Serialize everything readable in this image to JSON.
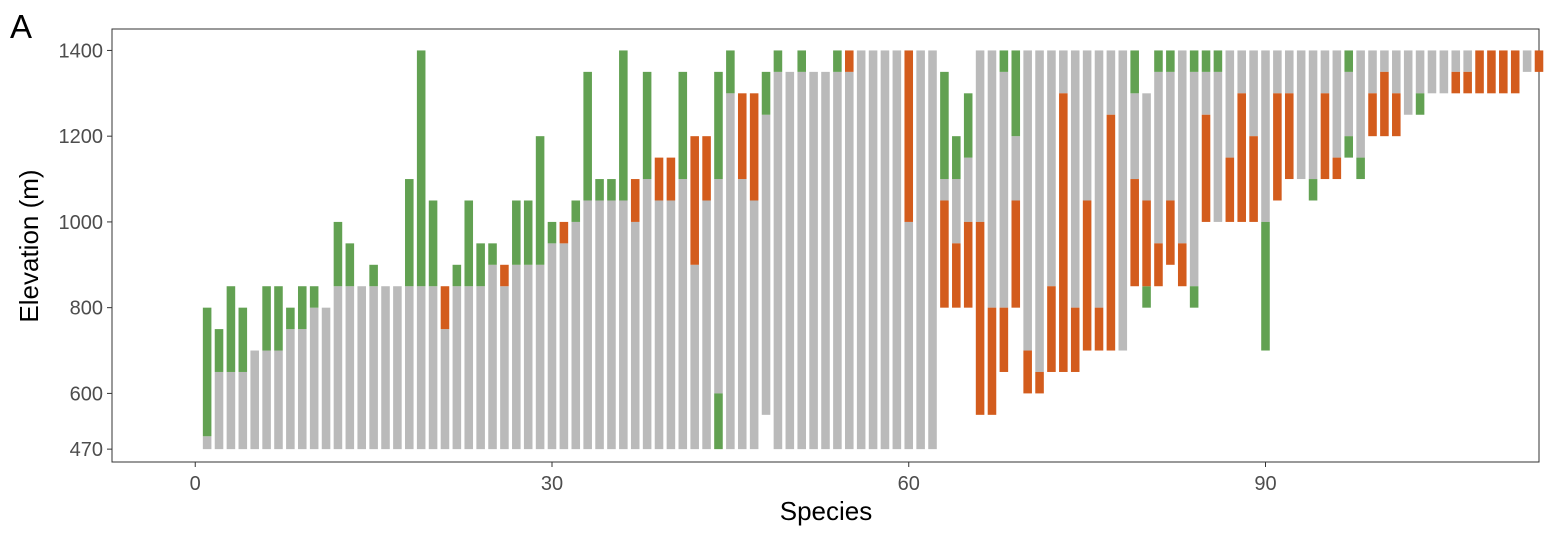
{
  "panel_label": "A",
  "chart_data": {
    "type": "bar",
    "subtype": "floating-range",
    "xlabel": "Species",
    "ylabel": "Elevation (m)",
    "xlim": [
      -7,
      113
    ],
    "ylim": [
      440,
      1450
    ],
    "xticks": [
      0,
      30,
      60,
      90
    ],
    "yticks": [
      470,
      600,
      800,
      1000,
      1200,
      1400
    ],
    "grid": false,
    "legend": "none",
    "colors": {
      "range": "#bababa",
      "green": "#62a152",
      "orange": "#d35c1d"
    },
    "species": [
      {
        "x": 1,
        "gray": [
          470,
          500
        ],
        "green": [
          500,
          800
        ]
      },
      {
        "x": 2,
        "gray": [
          470,
          650
        ],
        "green": [
          650,
          750
        ]
      },
      {
        "x": 3,
        "gray": [
          470,
          650
        ],
        "green": [
          650,
          850
        ]
      },
      {
        "x": 4,
        "gray": [
          470,
          650
        ],
        "green": [
          650,
          800
        ]
      },
      {
        "x": 5,
        "gray": [
          470,
          700
        ]
      },
      {
        "x": 6,
        "gray": [
          470,
          700
        ],
        "green": [
          700,
          850
        ]
      },
      {
        "x": 7,
        "gray": [
          470,
          700
        ],
        "green": [
          700,
          850
        ]
      },
      {
        "x": 8,
        "gray": [
          470,
          750
        ],
        "green": [
          750,
          800
        ]
      },
      {
        "x": 9,
        "gray": [
          470,
          750
        ],
        "green": [
          750,
          850
        ]
      },
      {
        "x": 10,
        "gray": [
          470,
          800
        ],
        "green": [
          800,
          850
        ]
      },
      {
        "x": 11,
        "gray": [
          470,
          800
        ]
      },
      {
        "x": 12,
        "gray": [
          470,
          850
        ],
        "green": [
          850,
          1000
        ]
      },
      {
        "x": 13,
        "gray": [
          470,
          850
        ],
        "green": [
          850,
          950
        ]
      },
      {
        "x": 14,
        "gray": [
          470,
          850
        ]
      },
      {
        "x": 15,
        "gray": [
          470,
          850
        ],
        "green": [
          850,
          900
        ]
      },
      {
        "x": 16,
        "gray": [
          470,
          850
        ]
      },
      {
        "x": 17,
        "gray": [
          470,
          850
        ]
      },
      {
        "x": 18,
        "gray": [
          470,
          850
        ],
        "green": [
          850,
          1100
        ]
      },
      {
        "x": 19,
        "gray": [
          470,
          850
        ],
        "green": [
          850,
          1400
        ]
      },
      {
        "x": 20,
        "gray": [
          470,
          850
        ],
        "green": [
          850,
          1050
        ]
      },
      {
        "x": 21,
        "gray": [
          470,
          750
        ],
        "orange": [
          750,
          850
        ]
      },
      {
        "x": 22,
        "gray": [
          470,
          850
        ],
        "green": [
          850,
          900
        ]
      },
      {
        "x": 23,
        "gray": [
          470,
          850
        ],
        "green": [
          850,
          1050
        ]
      },
      {
        "x": 24,
        "gray": [
          470,
          850
        ],
        "green": [
          850,
          950
        ]
      },
      {
        "x": 25,
        "gray": [
          470,
          900
        ],
        "green": [
          900,
          950
        ]
      },
      {
        "x": 26,
        "gray": [
          470,
          850
        ],
        "orange": [
          850,
          900
        ]
      },
      {
        "x": 27,
        "gray": [
          470,
          900
        ],
        "green": [
          900,
          1050
        ]
      },
      {
        "x": 28,
        "gray": [
          470,
          900
        ],
        "green": [
          900,
          1050
        ]
      },
      {
        "x": 29,
        "gray": [
          470,
          900
        ],
        "green": [
          900,
          1200
        ]
      },
      {
        "x": 30,
        "gray": [
          470,
          950
        ],
        "green": [
          950,
          1000
        ]
      },
      {
        "x": 31,
        "gray": [
          470,
          950
        ],
        "orange": [
          950,
          1000
        ]
      },
      {
        "x": 32,
        "gray": [
          470,
          1000
        ],
        "green": [
          1000,
          1050
        ]
      },
      {
        "x": 33,
        "gray": [
          470,
          1050
        ],
        "green": [
          1050,
          1350
        ]
      },
      {
        "x": 34,
        "gray": [
          470,
          1050
        ],
        "green": [
          1050,
          1100
        ]
      },
      {
        "x": 35,
        "gray": [
          470,
          1050
        ],
        "green": [
          1050,
          1100
        ]
      },
      {
        "x": 36,
        "gray": [
          470,
          1050
        ],
        "green": [
          1050,
          1400
        ]
      },
      {
        "x": 37,
        "gray": [
          470,
          1000
        ],
        "orange": [
          1000,
          1100
        ]
      },
      {
        "x": 38,
        "gray": [
          470,
          1100
        ],
        "green": [
          1100,
          1350
        ]
      },
      {
        "x": 39,
        "gray": [
          470,
          1050
        ],
        "orange": [
          1050,
          1150
        ]
      },
      {
        "x": 40,
        "gray": [
          470,
          1050
        ],
        "orange": [
          1050,
          1150
        ]
      },
      {
        "x": 41,
        "gray": [
          470,
          1100
        ],
        "green": [
          1100,
          1350
        ]
      },
      {
        "x": 42,
        "gray": [
          470,
          900
        ],
        "orange": [
          900,
          1200
        ]
      },
      {
        "x": 43,
        "gray": [
          470,
          1050
        ],
        "orange": [
          1050,
          1200
        ]
      },
      {
        "x": 44,
        "green": [
          470,
          600
        ],
        "gray": [
          600,
          1100
        ],
        "green2": [
          1100,
          1350
        ]
      },
      {
        "x": 45,
        "gray": [
          470,
          1300
        ],
        "green": [
          1300,
          1400
        ]
      },
      {
        "x": 46,
        "gray": [
          470,
          1100
        ],
        "orange": [
          1100,
          1300
        ]
      },
      {
        "x": 47,
        "gray": [
          470,
          1050
        ],
        "orange": [
          1050,
          1300
        ]
      },
      {
        "x": 48,
        "gray": [
          550,
          1250
        ],
        "green": [
          1250,
          1350
        ]
      },
      {
        "x": 49,
        "gray": [
          470,
          1350
        ],
        "green": [
          1350,
          1400
        ]
      },
      {
        "x": 50,
        "gray": [
          470,
          1350
        ]
      },
      {
        "x": 51,
        "gray": [
          470,
          1350
        ],
        "green": [
          1350,
          1400
        ]
      },
      {
        "x": 52,
        "gray": [
          470,
          1350
        ]
      },
      {
        "x": 53,
        "gray": [
          470,
          1350
        ]
      },
      {
        "x": 54,
        "gray": [
          470,
          1350
        ],
        "green": [
          1350,
          1400
        ]
      },
      {
        "x": 55,
        "gray": [
          470,
          1350
        ],
        "orange": [
          1350,
          1400
        ]
      },
      {
        "x": 56,
        "gray": [
          470,
          1400
        ]
      },
      {
        "x": 57,
        "gray": [
          470,
          1400
        ]
      },
      {
        "x": 58,
        "gray": [
          470,
          1400
        ]
      },
      {
        "x": 59,
        "gray": [
          470,
          1400
        ]
      },
      {
        "x": 60,
        "gray": [
          470,
          1000
        ],
        "orange": [
          1000,
          1400
        ]
      },
      {
        "x": 61,
        "gray": [
          470,
          1400
        ]
      },
      {
        "x": 62,
        "gray": [
          470,
          1400
        ]
      },
      {
        "x": 63,
        "orange": [
          800,
          1050
        ],
        "gray": [
          1050,
          1100
        ],
        "green": [
          1100,
          1350
        ]
      },
      {
        "x": 64,
        "orange": [
          800,
          950
        ],
        "gray": [
          950,
          1100
        ],
        "green": [
          1100,
          1200
        ]
      },
      {
        "x": 65,
        "orange": [
          800,
          1000
        ],
        "gray": [
          1000,
          1150
        ],
        "green": [
          1150,
          1300
        ]
      },
      {
        "x": 66,
        "orange": [
          550,
          1000
        ],
        "gray": [
          1000,
          1400
        ]
      },
      {
        "x": 67,
        "orange": [
          550,
          800
        ],
        "gray": [
          800,
          1400
        ]
      },
      {
        "x": 68,
        "orange": [
          650,
          800
        ],
        "gray": [
          800,
          1350
        ],
        "green": [
          1350,
          1400
        ]
      },
      {
        "x": 69,
        "orange": [
          800,
          1050
        ],
        "gray": [
          1050,
          1200
        ],
        "green": [
          1200,
          1400
        ]
      },
      {
        "x": 70,
        "orange": [
          600,
          700
        ],
        "gray": [
          700,
          1400
        ]
      },
      {
        "x": 71,
        "orange": [
          600,
          650
        ],
        "gray": [
          650,
          1400
        ]
      },
      {
        "x": 72,
        "orange": [
          650,
          850
        ],
        "gray": [
          850,
          1400
        ]
      },
      {
        "x": 73,
        "orange": [
          650,
          1300
        ],
        "gray": [
          1300,
          1400
        ]
      },
      {
        "x": 74,
        "orange": [
          650,
          800
        ],
        "gray": [
          800,
          1400
        ]
      },
      {
        "x": 75,
        "orange": [
          700,
          1050
        ],
        "gray": [
          1050,
          1400
        ]
      },
      {
        "x": 76,
        "orange": [
          700,
          800
        ],
        "gray": [
          800,
          1400
        ]
      },
      {
        "x": 77,
        "orange": [
          700,
          1250
        ],
        "gray": [
          1250,
          1400
        ]
      },
      {
        "x": 78,
        "gray": [
          700,
          1400
        ]
      },
      {
        "x": 79,
        "orange": [
          850,
          1100
        ],
        "gray": [
          1100,
          1300
        ],
        "green": [
          1300,
          1400
        ]
      },
      {
        "x": 80,
        "green": [
          800,
          850
        ],
        "orange": [
          850,
          1050
        ],
        "gray": [
          1050,
          1300
        ]
      },
      {
        "x": 81,
        "orange": [
          850,
          950
        ],
        "gray": [
          950,
          1350
        ],
        "green": [
          1350,
          1400
        ]
      },
      {
        "x": 82,
        "orange": [
          900,
          1050
        ],
        "gray": [
          1050,
          1350
        ],
        "green": [
          1350,
          1400
        ]
      },
      {
        "x": 83,
        "orange": [
          850,
          950
        ],
        "gray": [
          950,
          1400
        ]
      },
      {
        "x": 84,
        "green": [
          800,
          850
        ],
        "gray": [
          850,
          1350
        ],
        "green2": [
          1350,
          1400
        ]
      },
      {
        "x": 85,
        "orange": [
          1000,
          1250
        ],
        "gray": [
          1250,
          1350
        ],
        "green": [
          1350,
          1400
        ]
      },
      {
        "x": 86,
        "gray": [
          1000,
          1350
        ],
        "green": [
          1350,
          1400
        ]
      },
      {
        "x": 87,
        "orange": [
          1000,
          1150
        ],
        "gray": [
          1150,
          1400
        ]
      },
      {
        "x": 88,
        "orange": [
          1000,
          1300
        ],
        "gray": [
          1300,
          1400
        ]
      },
      {
        "x": 89,
        "orange": [
          1000,
          1200
        ],
        "gray": [
          1200,
          1400
        ]
      },
      {
        "x": 90,
        "green": [
          700,
          1000
        ],
        "gray": [
          1000,
          1400
        ]
      },
      {
        "x": 91,
        "orange": [
          1050,
          1300
        ],
        "gray": [
          1300,
          1400
        ]
      },
      {
        "x": 92,
        "orange": [
          1100,
          1300
        ],
        "gray": [
          1300,
          1400
        ]
      },
      {
        "x": 93,
        "gray": [
          1100,
          1400
        ]
      },
      {
        "x": 94,
        "green": [
          1050,
          1100
        ],
        "gray": [
          1100,
          1400
        ]
      },
      {
        "x": 95,
        "orange": [
          1100,
          1300
        ],
        "gray": [
          1300,
          1400
        ]
      },
      {
        "x": 96,
        "orange": [
          1100,
          1150
        ],
        "gray": [
          1150,
          1400
        ]
      },
      {
        "x": 97,
        "green": [
          1150,
          1200
        ],
        "gray": [
          1200,
          1350
        ],
        "green2": [
          1350,
          1400
        ]
      },
      {
        "x": 98,
        "green": [
          1100,
          1150
        ],
        "gray": [
          1150,
          1400
        ]
      },
      {
        "x": 99,
        "orange": [
          1200,
          1300
        ],
        "gray": [
          1300,
          1400
        ]
      },
      {
        "x": 100,
        "orange": [
          1200,
          1350
        ],
        "gray": [
          1350,
          1400
        ]
      },
      {
        "x": 101,
        "orange": [
          1200,
          1300
        ],
        "gray": [
          1300,
          1400
        ]
      },
      {
        "x": 102,
        "gray": [
          1250,
          1400
        ]
      },
      {
        "x": 103,
        "green": [
          1250,
          1300
        ],
        "gray": [
          1300,
          1400
        ]
      },
      {
        "x": 104,
        "gray": [
          1300,
          1400
        ]
      },
      {
        "x": 105,
        "gray": [
          1300,
          1400
        ]
      },
      {
        "x": 106,
        "orange": [
          1300,
          1350
        ],
        "gray": [
          1350,
          1400
        ]
      },
      {
        "x": 107,
        "orange": [
          1300,
          1350
        ],
        "gray": [
          1350,
          1400
        ]
      },
      {
        "x": 108,
        "orange": [
          1300,
          1400
        ]
      },
      {
        "x": 109,
        "orange": [
          1300,
          1400
        ]
      },
      {
        "x": 110,
        "orange": [
          1300,
          1400
        ]
      },
      {
        "x": 111,
        "orange": [
          1300,
          1400
        ]
      },
      {
        "x": 112,
        "gray": [
          1350,
          1400
        ]
      },
      {
        "x": 113,
        "orange": [
          1350,
          1400
        ]
      }
    ]
  }
}
